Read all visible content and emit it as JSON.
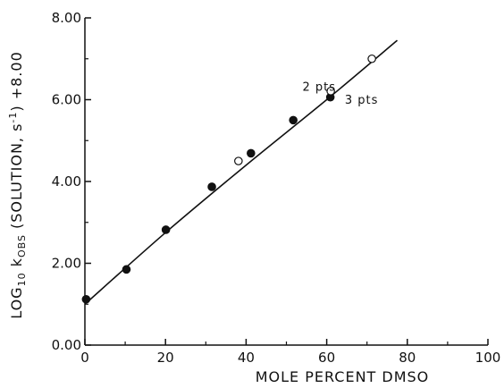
{
  "chart_data": {
    "type": "scatter",
    "xlabel": "MOLE PERCENT DMSO",
    "ylabel_parts": {
      "pre": "LOG",
      "sub1": "10",
      "mid": " k",
      "sub2": "OBS",
      "mid2": " (SOLUTION, s",
      "sup": "-1",
      "post": ") +8.00"
    },
    "xlim": [
      0,
      100
    ],
    "ylim": [
      0,
      8
    ],
    "x_ticks": [
      0,
      20,
      40,
      60,
      80,
      100
    ],
    "x_tick_labels": [
      "0",
      "20",
      "40",
      "60",
      "80",
      "100"
    ],
    "y_ticks": [
      0,
      2,
      4,
      6,
      8
    ],
    "y_tick_labels": [
      "0.00",
      "2.00",
      "4.00",
      "6.00",
      "8.00"
    ],
    "grid": false,
    "series": [
      {
        "marker": "filled-circle",
        "points": [
          {
            "x": 0.3,
            "y": 1.12
          },
          {
            "x": 10.3,
            "y": 1.85
          },
          {
            "x": 20.1,
            "y": 2.82
          },
          {
            "x": 31.5,
            "y": 3.87
          },
          {
            "x": 41.2,
            "y": 4.69
          },
          {
            "x": 51.7,
            "y": 5.5
          },
          {
            "x": 60.9,
            "y": 6.06
          }
        ]
      },
      {
        "marker": "open-circle",
        "points": [
          {
            "x": 38.1,
            "y": 4.5
          },
          {
            "x": 61.0,
            "y": 6.21
          },
          {
            "x": 71.2,
            "y": 7.0
          }
        ]
      }
    ],
    "fit_line": {
      "points": [
        {
          "x": 0,
          "y": 1.0
        },
        {
          "x": 20,
          "y": 2.75
        },
        {
          "x": 40,
          "y": 4.4
        },
        {
          "x": 60,
          "y": 6.0
        },
        {
          "x": 77.5,
          "y": 7.45
        }
      ]
    },
    "annotations": [
      {
        "text": "2 pts",
        "x": 54.0,
        "y": 6.22
      },
      {
        "text": "3 pts",
        "x": 64.5,
        "y": 5.9
      }
    ]
  }
}
